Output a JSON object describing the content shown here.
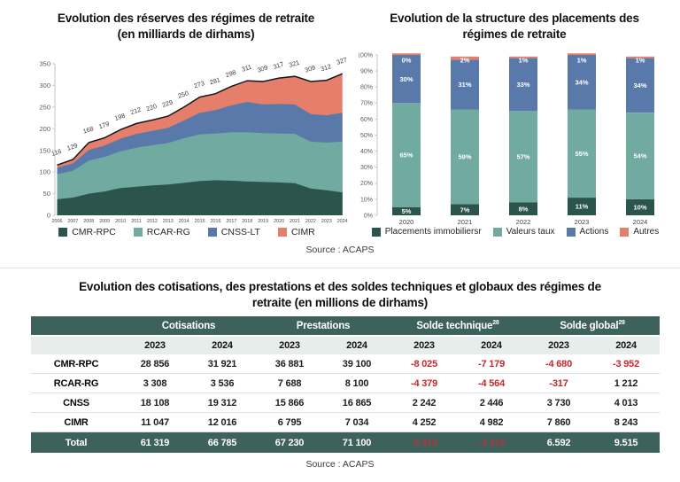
{
  "source_top": "Source : ACAPS",
  "source_bottom": "Source : ACAPS",
  "reserves": {
    "title_line1": "Evolution des réserves des régimes de retraite",
    "title_line2": "(en milliards de dirhams)"
  },
  "placements": {
    "title_line1": "Evolution de la structure des placements des",
    "title_line2": "régimes de retraite"
  },
  "chart_data": [
    {
      "type": "area",
      "title": "Evolution des réserves des régimes de retraite (en milliards de dirhams)",
      "x": [
        2006,
        2007,
        2008,
        2009,
        2010,
        2011,
        2012,
        2013,
        2014,
        2015,
        2016,
        2017,
        2018,
        2019,
        2020,
        2021,
        2022,
        2023,
        2024
      ],
      "totals": [
        116,
        129,
        168,
        179,
        198,
        212,
        220,
        229,
        250,
        273,
        281,
        298,
        311,
        309,
        317,
        321,
        309,
        312,
        327
      ],
      "series": [
        {
          "name": "CMR-RPC",
          "color": "#2A544C",
          "values": [
            37,
            41,
            50,
            55,
            63,
            66,
            69,
            71,
            75,
            79,
            81,
            80,
            78,
            77,
            76,
            74,
            62,
            58,
            53
          ]
        },
        {
          "name": "RCAR-RG",
          "color": "#70AAA0",
          "values": [
            58,
            62,
            76,
            80,
            85,
            90,
            93,
            96,
            103,
            108,
            108,
            112,
            114,
            113,
            113,
            114,
            108,
            110,
            117
          ]
        },
        {
          "name": "CNSS-LT",
          "color": "#5A79AB",
          "values": [
            15,
            17,
            25,
            26,
            29,
            32,
            33,
            35,
            41,
            50,
            54,
            62,
            70,
            66,
            68,
            68,
            64,
            63,
            67
          ]
        },
        {
          "name": "CIMR",
          "color": "#E57F6C",
          "values": [
            6,
            9,
            17,
            18,
            21,
            24,
            25,
            27,
            31,
            36,
            38,
            44,
            49,
            53,
            60,
            65,
            75,
            81,
            90
          ]
        }
      ],
      "ylim": [
        0,
        350
      ],
      "ytick_step": 50,
      "legend_position": "bottom",
      "grid": false
    },
    {
      "type": "bar",
      "subtype": "stacked-percent",
      "title": "Evolution de la structure des placements des régimes de retraite",
      "categories": [
        "2020",
        "2021",
        "2022",
        "2023",
        "2024"
      ],
      "series": [
        {
          "name": "Placements immobiliersr",
          "color": "#2A544C",
          "values": [
            5,
            7,
            8,
            11,
            10
          ]
        },
        {
          "name": "Valeurs taux",
          "color": "#70AAA0",
          "values": [
            65,
            59,
            57,
            55,
            54
          ]
        },
        {
          "name": "Actions",
          "color": "#5A79AB",
          "values": [
            30,
            31,
            33,
            34,
            34
          ]
        },
        {
          "name": "Autres",
          "color": "#E57F6C",
          "values": [
            0,
            2,
            1,
            1,
            1
          ]
        }
      ],
      "ylim": [
        0,
        100
      ],
      "ytick_step": 10,
      "ytick_suffix": "%",
      "legend_position": "bottom",
      "grid": false
    }
  ],
  "table": {
    "title_line1": "Evolution des cotisations, des prestations et des soldes techniques et globaux des régimes de",
    "title_line2": "retraite (en millions de dirhams)",
    "group_headers": [
      {
        "label": "Cotisations",
        "sup": ""
      },
      {
        "label": "Prestations",
        "sup": ""
      },
      {
        "label": "Solde technique",
        "sup": "28"
      },
      {
        "label": "Solde global",
        "sup": "29"
      }
    ],
    "year_headers": [
      "2023",
      "2024",
      "2023",
      "2024",
      "2023",
      "2024",
      "2023",
      "2024"
    ],
    "rows": [
      {
        "label": "CMR-RPC",
        "values": [
          "28 856",
          "31 921",
          "36 881",
          "39 100",
          "-8 025",
          "-7 179",
          "-4 680",
          "-3 952"
        ],
        "red": [
          false,
          false,
          false,
          false,
          true,
          true,
          true,
          true
        ]
      },
      {
        "label": "RCAR-RG",
        "values": [
          "3 308",
          "3 536",
          "7 688",
          "8 100",
          "-4 379",
          "-4 564",
          "-317",
          "1 212"
        ],
        "red": [
          false,
          false,
          false,
          false,
          true,
          true,
          true,
          false
        ]
      },
      {
        "label": "CNSS",
        "values": [
          "18 108",
          "19 312",
          "15 866",
          "16 865",
          "2 242",
          "2 446",
          "3 730",
          "4 013"
        ],
        "red": [
          false,
          false,
          false,
          false,
          false,
          false,
          false,
          false
        ]
      },
      {
        "label": "CIMR",
        "values": [
          "11 047",
          "12 016",
          "6 795",
          "7 034",
          "4 252",
          "4 982",
          "7 860",
          "8 243"
        ],
        "red": [
          false,
          false,
          false,
          false,
          false,
          false,
          false,
          false
        ]
      }
    ],
    "total_row": {
      "label": "Total",
      "values": [
        "61 319",
        "66 785",
        "67 230",
        "71 100",
        "-5 910",
        "-4 315",
        "6.592",
        "9.515"
      ],
      "red": [
        false,
        false,
        false,
        false,
        true,
        true,
        false,
        false
      ]
    }
  }
}
